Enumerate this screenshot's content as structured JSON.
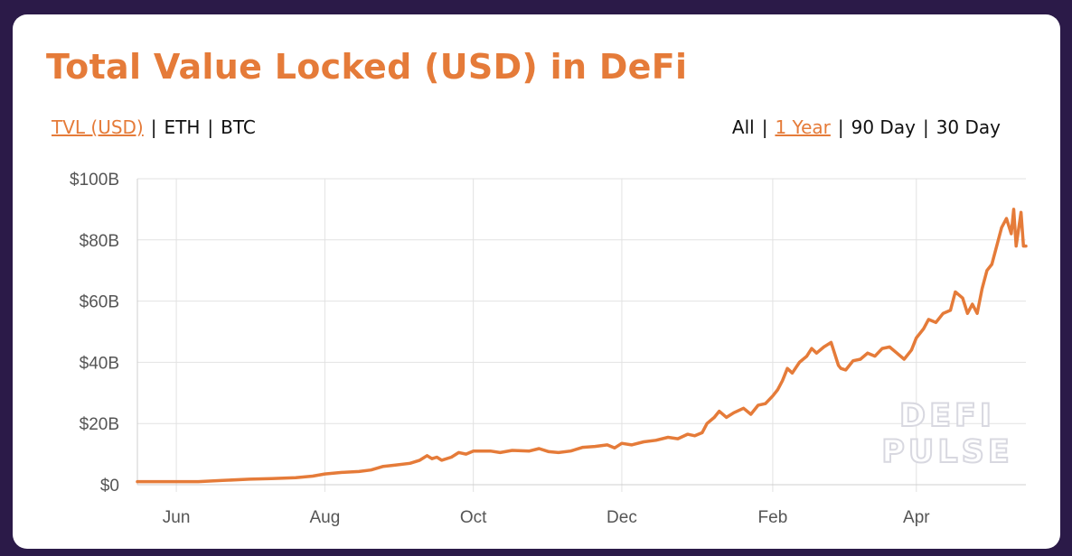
{
  "title": "Total Value Locked (USD) in DeFi",
  "metric_tabs": [
    {
      "label": "TVL (USD)",
      "active": true
    },
    {
      "label": "ETH",
      "active": false
    },
    {
      "label": "BTC",
      "active": false
    }
  ],
  "range_tabs": [
    {
      "label": "All",
      "active": false
    },
    {
      "label": "1 Year",
      "active": true
    },
    {
      "label": "90 Day",
      "active": false
    },
    {
      "label": "30 Day",
      "active": false
    }
  ],
  "separator": "|",
  "watermark": [
    "DEFI",
    "PULSE"
  ],
  "colors": {
    "accent": "#e57b39",
    "background": "#2b1a48",
    "grid": "#e2e2e2"
  },
  "chart_data": {
    "type": "line",
    "title": "Total Value Locked (USD) in DeFi",
    "xlabel": "",
    "ylabel": "",
    "ylim": [
      0,
      100
    ],
    "y_unit": "billion USD",
    "y_ticks": [
      0,
      20,
      40,
      60,
      80,
      100
    ],
    "y_tick_labels": [
      "$0",
      "$20B",
      "$40B",
      "$60B",
      "$80B",
      "$100B"
    ],
    "x_ticks": [
      "2020-06-01",
      "2020-08-01",
      "2020-10-01",
      "2020-12-01",
      "2021-02-01",
      "2021-04-01"
    ],
    "x_tick_labels": [
      "Jun",
      "Aug",
      "Oct",
      "Dec",
      "Feb",
      "Apr"
    ],
    "xlim": [
      "2020-05-16",
      "2021-05-16"
    ],
    "grid": true,
    "legend": "none",
    "series": [
      {
        "color": "#e57b39",
        "points": [
          [
            "2020-05-16",
            1.0
          ],
          [
            "2020-06-01",
            1.0
          ],
          [
            "2020-06-10",
            1.0
          ],
          [
            "2020-06-20",
            1.4
          ],
          [
            "2020-07-01",
            1.8
          ],
          [
            "2020-07-10",
            2.0
          ],
          [
            "2020-07-20",
            2.3
          ],
          [
            "2020-07-27",
            2.8
          ],
          [
            "2020-08-01",
            3.5
          ],
          [
            "2020-08-08",
            4.0
          ],
          [
            "2020-08-15",
            4.3
          ],
          [
            "2020-08-20",
            4.8
          ],
          [
            "2020-08-25",
            6.0
          ],
          [
            "2020-08-30",
            6.4
          ],
          [
            "2020-09-05",
            7.0
          ],
          [
            "2020-09-09",
            8.0
          ],
          [
            "2020-09-12",
            9.5
          ],
          [
            "2020-09-14",
            8.5
          ],
          [
            "2020-09-16",
            9.0
          ],
          [
            "2020-09-18",
            8.0
          ],
          [
            "2020-09-22",
            9.0
          ],
          [
            "2020-09-25",
            10.5
          ],
          [
            "2020-09-28",
            10.0
          ],
          [
            "2020-10-01",
            11.0
          ],
          [
            "2020-10-08",
            11.0
          ],
          [
            "2020-10-12",
            10.5
          ],
          [
            "2020-10-17",
            11.2
          ],
          [
            "2020-10-24",
            11.0
          ],
          [
            "2020-10-28",
            11.8
          ],
          [
            "2020-11-01",
            10.8
          ],
          [
            "2020-11-05",
            10.5
          ],
          [
            "2020-11-10",
            11.0
          ],
          [
            "2020-11-15",
            12.2
          ],
          [
            "2020-11-20",
            12.5
          ],
          [
            "2020-11-25",
            13.0
          ],
          [
            "2020-11-28",
            12.0
          ],
          [
            "2020-12-01",
            13.5
          ],
          [
            "2020-12-05",
            13.0
          ],
          [
            "2020-12-10",
            14.0
          ],
          [
            "2020-12-15",
            14.5
          ],
          [
            "2020-12-20",
            15.5
          ],
          [
            "2020-12-24",
            15.0
          ],
          [
            "2020-12-28",
            16.5
          ],
          [
            "2020-12-31",
            16.0
          ],
          [
            "2021-01-03",
            17.0
          ],
          [
            "2021-01-05",
            20.0
          ],
          [
            "2021-01-08",
            22.0
          ],
          [
            "2021-01-10",
            24.0
          ],
          [
            "2021-01-13",
            22.0
          ],
          [
            "2021-01-16",
            23.5
          ],
          [
            "2021-01-20",
            25.0
          ],
          [
            "2021-01-23",
            23.0
          ],
          [
            "2021-01-26",
            26.0
          ],
          [
            "2021-01-29",
            26.5
          ],
          [
            "2021-02-01",
            29.0
          ],
          [
            "2021-02-03",
            31.0
          ],
          [
            "2021-02-05",
            34.0
          ],
          [
            "2021-02-07",
            38.0
          ],
          [
            "2021-02-09",
            36.5
          ],
          [
            "2021-02-12",
            40.0
          ],
          [
            "2021-02-15",
            42.0
          ],
          [
            "2021-02-17",
            44.5
          ],
          [
            "2021-02-19",
            43.0
          ],
          [
            "2021-02-22",
            45.0
          ],
          [
            "2021-02-25",
            46.5
          ],
          [
            "2021-02-28",
            39.0
          ],
          [
            "2021-03-01",
            38.0
          ],
          [
            "2021-03-03",
            37.5
          ],
          [
            "2021-03-06",
            40.5
          ],
          [
            "2021-03-09",
            41.0
          ],
          [
            "2021-03-12",
            43.0
          ],
          [
            "2021-03-15",
            42.0
          ],
          [
            "2021-03-18",
            44.5
          ],
          [
            "2021-03-21",
            45.0
          ],
          [
            "2021-03-24",
            43.0
          ],
          [
            "2021-03-27",
            41.0
          ],
          [
            "2021-03-30",
            44.0
          ],
          [
            "2021-04-01",
            48.0
          ],
          [
            "2021-04-04",
            51.0
          ],
          [
            "2021-04-06",
            54.0
          ],
          [
            "2021-04-09",
            53.0
          ],
          [
            "2021-04-12",
            56.0
          ],
          [
            "2021-04-15",
            57.0
          ],
          [
            "2021-04-17",
            63.0
          ],
          [
            "2021-04-20",
            61.0
          ],
          [
            "2021-04-22",
            56.0
          ],
          [
            "2021-04-24",
            59.0
          ],
          [
            "2021-04-26",
            56.0
          ],
          [
            "2021-04-28",
            64.0
          ],
          [
            "2021-04-30",
            70.0
          ],
          [
            "2021-05-02",
            72.0
          ],
          [
            "2021-05-04",
            78.0
          ],
          [
            "2021-05-06",
            84.0
          ],
          [
            "2021-05-08",
            87.0
          ],
          [
            "2021-05-10",
            82.0
          ],
          [
            "2021-05-11",
            90.0
          ],
          [
            "2021-05-12",
            78.0
          ],
          [
            "2021-05-14",
            89.0
          ],
          [
            "2021-05-15",
            78.0
          ],
          [
            "2021-05-16",
            78.0
          ]
        ]
      }
    ]
  }
}
